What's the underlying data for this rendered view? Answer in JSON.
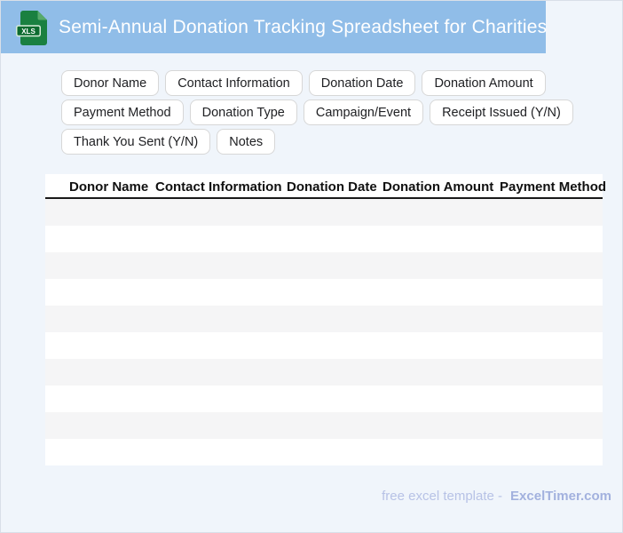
{
  "header": {
    "title": "Semi-Annual Donation Tracking Spreadsheet for Charities",
    "icon_label": "XLS",
    "bar_color": "#90BDE8"
  },
  "chips": {
    "rows": [
      [
        "Donor Name",
        "Contact Information",
        "Donation Date",
        "Donation Amount"
      ],
      [
        "Payment Method",
        "Donation Type",
        "Campaign/Event",
        "Receipt Issued (Y/N)"
      ],
      [
        "Thank You Sent (Y/N)",
        "Notes"
      ]
    ]
  },
  "table": {
    "columns": [
      "Donor Name",
      "Contact Information",
      "Donation Date",
      "Donation Amount",
      "Payment Method"
    ],
    "row_count": 10,
    "rows_empty": true,
    "stripe_color": "#F5F5F6"
  },
  "footer": {
    "prefix": "free excel template -",
    "brand": "ExcelTimer.com"
  },
  "colors": {
    "page_background": "#F0F5FB",
    "header_bar": "#90BDE8",
    "icon_green": "#1A8040",
    "icon_band_green": "#0D6B2F",
    "header_rule": "#191919",
    "footer_text": "#B7C2E6",
    "footer_brand": "#A2B1DE"
  }
}
